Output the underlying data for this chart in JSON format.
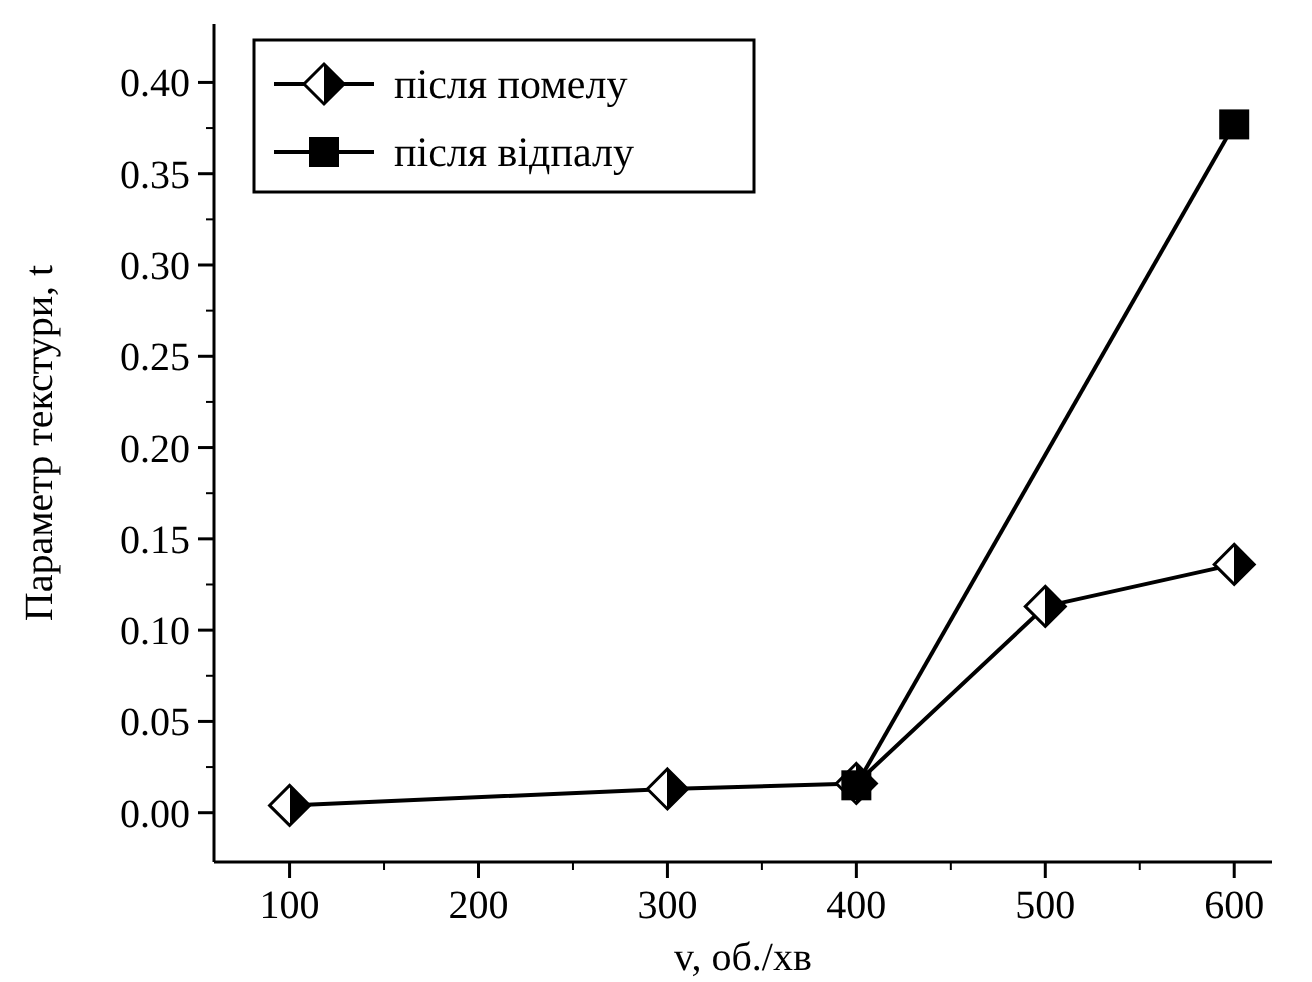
{
  "chart_data": {
    "type": "line",
    "xlabel": "v, об./хв",
    "ylabel": "Параметр текстури, t",
    "xlim": [
      60,
      620
    ],
    "xticks": [
      100,
      200,
      300,
      400,
      500,
      600
    ],
    "ylim": [
      -0.027,
      0.432
    ],
    "yticks": [
      {
        "value": 0,
        "label": "0.00"
      },
      {
        "value": 0.05,
        "label": "0.05"
      },
      {
        "value": 0.1,
        "label": "0.10"
      },
      {
        "value": 0.15,
        "label": "0.15"
      },
      {
        "value": 0.2,
        "label": "0.20"
      },
      {
        "value": 0.25,
        "label": "0.25"
      },
      {
        "value": 0.3,
        "label": "0.30"
      },
      {
        "value": 0.35,
        "label": "0.35"
      },
      {
        "value": 0.4,
        "label": "0.40"
      }
    ],
    "grid": false,
    "legend": "top left",
    "line_style": "solid",
    "series": [
      {
        "name": "після помелу",
        "color": "#000000",
        "marker": "diamond",
        "x": [
          100,
          300,
          400,
          500,
          600
        ],
        "values": [
          0.004,
          0.013,
          0.016,
          0.113,
          0.136
        ]
      },
      {
        "name": "після відпалу",
        "color": "#000000",
        "marker": "square",
        "x": [
          400,
          600
        ],
        "values": [
          0.015,
          0.377
        ]
      }
    ]
  }
}
